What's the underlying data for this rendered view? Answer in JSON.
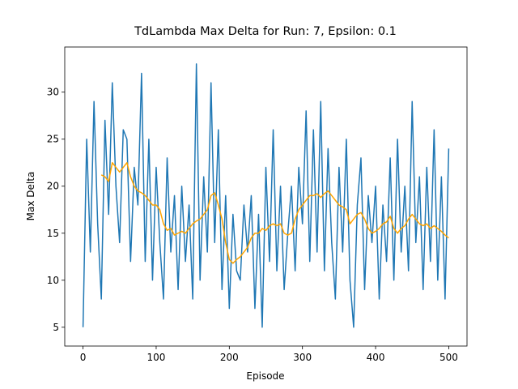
{
  "chart_data": {
    "type": "line",
    "title": "TdLambda Max Delta for Run: 7, Epsilon: 0.1",
    "x_label": "Episode",
    "y_label": "Max Delta",
    "xlim": [
      -25,
      525
    ],
    "ylim": [
      3.0,
      34.8
    ],
    "xticks": [
      0,
      100,
      200,
      300,
      400,
      500
    ],
    "yticks": [
      5,
      10,
      15,
      20,
      25,
      30
    ],
    "grid": false,
    "series": [
      {
        "color": "#1f77b4",
        "x": [
          0,
          5,
          10,
          15,
          20,
          25,
          30,
          35,
          40,
          45,
          50,
          55,
          60,
          65,
          70,
          75,
          80,
          85,
          90,
          95,
          100,
          105,
          110,
          115,
          120,
          125,
          130,
          135,
          140,
          145,
          150,
          155,
          160,
          165,
          170,
          175,
          180,
          185,
          190,
          195,
          200,
          205,
          210,
          215,
          220,
          225,
          230,
          235,
          240,
          245,
          250,
          255,
          260,
          265,
          270,
          275,
          280,
          285,
          290,
          295,
          300,
          305,
          310,
          315,
          320,
          325,
          330,
          335,
          340,
          345,
          350,
          355,
          360,
          365,
          370,
          375,
          380,
          385,
          390,
          395,
          400,
          405,
          410,
          415,
          420,
          425,
          430,
          435,
          440,
          445,
          450,
          455,
          460,
          465,
          470,
          475,
          480,
          485,
          490,
          495,
          500
        ],
        "values": [
          5,
          25,
          13,
          29,
          16,
          8,
          27,
          17,
          31,
          20,
          14,
          26,
          25,
          12,
          22,
          18,
          32,
          12,
          25,
          10,
          22,
          14,
          8,
          23,
          13,
          19,
          9,
          20,
          12,
          18,
          8,
          33,
          10,
          21,
          13,
          31,
          14,
          26,
          9,
          19,
          7,
          17,
          11,
          10,
          18,
          13,
          19,
          7,
          17,
          5,
          22,
          12,
          26,
          11,
          20,
          9,
          15,
          20,
          11,
          22,
          16,
          28,
          12,
          26,
          13,
          29,
          11,
          24,
          14,
          8,
          22,
          13,
          25,
          10,
          5,
          18,
          23,
          9,
          19,
          14,
          20,
          8,
          18,
          12,
          23,
          10,
          25,
          13,
          20,
          11,
          29,
          14,
          21,
          9,
          22,
          12,
          26,
          10,
          21,
          8,
          24
        ]
      },
      {
        "color": "#ffa500",
        "x": [
          25,
          30,
          35,
          40,
          45,
          50,
          55,
          60,
          65,
          70,
          75,
          80,
          85,
          90,
          95,
          100,
          105,
          110,
          115,
          120,
          125,
          130,
          135,
          140,
          145,
          150,
          155,
          160,
          165,
          170,
          175,
          180,
          185,
          190,
          195,
          200,
          205,
          210,
          215,
          220,
          225,
          230,
          235,
          240,
          245,
          250,
          255,
          260,
          265,
          270,
          275,
          280,
          285,
          290,
          295,
          300,
          305,
          310,
          315,
          320,
          325,
          330,
          335,
          340,
          345,
          350,
          355,
          360,
          365,
          370,
          375,
          380,
          385,
          390,
          395,
          400,
          405,
          410,
          415,
          420,
          425,
          430,
          435,
          440,
          445,
          450,
          455,
          460,
          465,
          470,
          475,
          480,
          485,
          490,
          495,
          500
        ],
        "values": [
          21.2,
          21,
          20.5,
          22.5,
          22,
          21.5,
          22,
          22.5,
          21,
          20,
          19.5,
          19.3,
          19,
          18.5,
          18,
          18,
          17.5,
          16,
          15.3,
          15.5,
          14.8,
          15,
          15.2,
          15,
          15.5,
          16,
          16.3,
          16.5,
          17,
          17.5,
          19,
          19.3,
          18,
          16.5,
          14,
          12.2,
          11.8,
          12.2,
          12.5,
          13,
          13.5,
          14.5,
          15,
          15,
          15.5,
          15.3,
          15.8,
          16,
          15.8,
          16,
          15,
          14.8,
          15,
          16.5,
          17.5,
          18,
          18.5,
          19,
          19,
          19.2,
          18.8,
          19.2,
          19.5,
          19,
          18.5,
          18,
          17.8,
          17.5,
          16,
          16.5,
          17,
          17.2,
          16.5,
          15.5,
          15,
          15.2,
          15.5,
          16,
          16.2,
          16.8,
          15.5,
          15,
          15.5,
          15.8,
          16.5,
          17,
          16.5,
          16,
          15.8,
          16,
          15.5,
          15.8,
          15.5,
          15.2,
          14.8,
          14.5
        ]
      }
    ]
  }
}
